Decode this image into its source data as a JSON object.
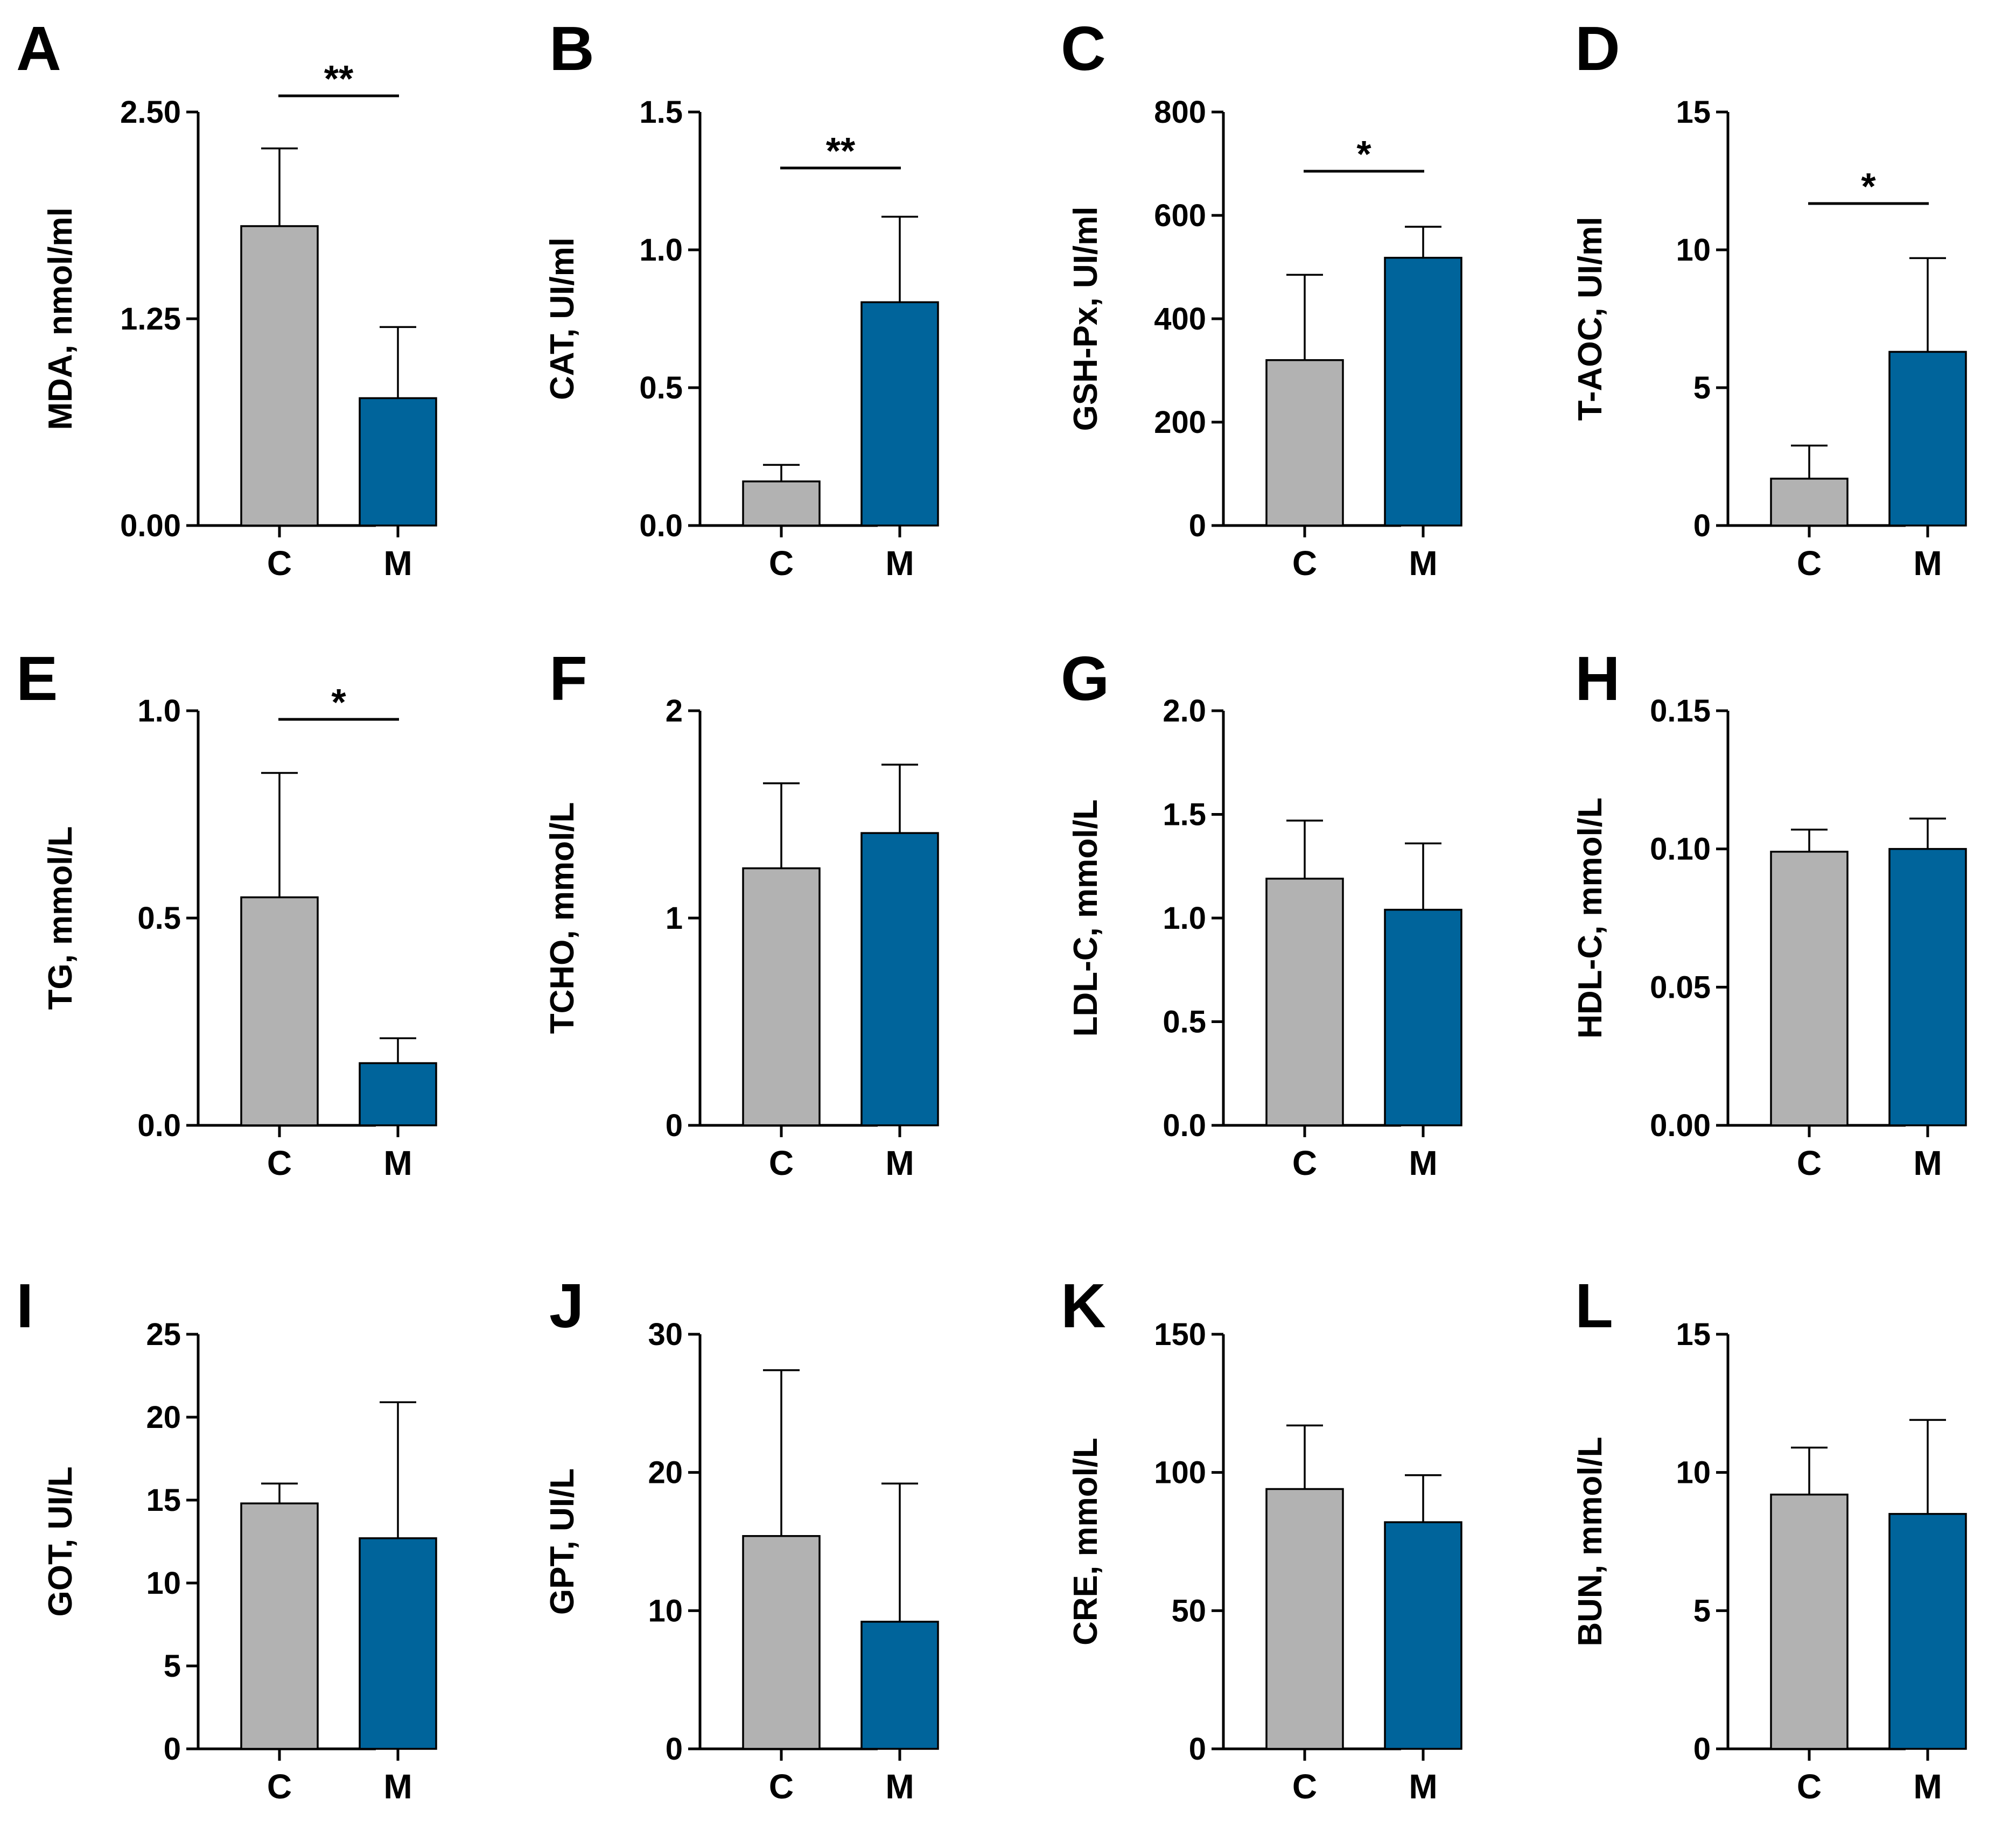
{
  "colors": {
    "C": "#b2b2b2",
    "M": "#00649b",
    "axis": "#000000",
    "background": "#ffffff"
  },
  "chart_data": [
    {
      "type": "bar",
      "panel": "A",
      "ylabel": "MDA, nmol/ml",
      "categories": [
        "C",
        "M"
      ],
      "values": [
        1.81,
        0.77
      ],
      "errors": [
        0.47,
        0.43
      ],
      "ylim": [
        0,
        2.5
      ],
      "yticks": [
        "0.00",
        "1.25",
        "2.50"
      ],
      "significance": "**"
    },
    {
      "type": "bar",
      "panel": "B",
      "ylabel": "CAT, UI/ml",
      "categories": [
        "C",
        "M"
      ],
      "values": [
        0.16,
        0.81
      ],
      "errors": [
        0.06,
        0.31
      ],
      "ylim": [
        0,
        1.5
      ],
      "yticks": [
        "0.0",
        "0.5",
        "1.0",
        "1.5"
      ],
      "significance": "**"
    },
    {
      "type": "bar",
      "panel": "C",
      "ylabel": "GSH-Px, UI/ml",
      "categories": [
        "C",
        "M"
      ],
      "values": [
        320,
        518
      ],
      "errors": [
        165,
        60
      ],
      "ylim": [
        0,
        800
      ],
      "yticks": [
        "0",
        "200",
        "400",
        "600",
        "800"
      ],
      "significance": "*"
    },
    {
      "type": "bar",
      "panel": "D",
      "ylabel": "T-AOC, UI/ml",
      "categories": [
        "C",
        "M"
      ],
      "values": [
        1.7,
        6.3
      ],
      "errors": [
        1.2,
        3.4
      ],
      "ylim": [
        0,
        15
      ],
      "yticks": [
        "0",
        "5",
        "10",
        "15"
      ],
      "significance": "*"
    },
    {
      "type": "bar",
      "panel": "E",
      "ylabel": "TG, mmol/L",
      "categories": [
        "C",
        "M"
      ],
      "values": [
        0.55,
        0.15
      ],
      "errors": [
        0.3,
        0.06
      ],
      "ylim": [
        0,
        1.0
      ],
      "yticks": [
        "0.0",
        "0.5",
        "1.0"
      ],
      "significance": "*"
    },
    {
      "type": "bar",
      "panel": "F",
      "ylabel": "TCHO, mmol/L",
      "categories": [
        "C",
        "M"
      ],
      "values": [
        1.24,
        1.41
      ],
      "errors": [
        0.41,
        0.33
      ],
      "ylim": [
        0,
        2
      ],
      "yticks": [
        "0",
        "1",
        "2"
      ],
      "significance": ""
    },
    {
      "type": "bar",
      "panel": "G",
      "ylabel": "LDL-C, mmol/L",
      "categories": [
        "C",
        "M"
      ],
      "values": [
        1.19,
        1.04
      ],
      "errors": [
        0.28,
        0.32
      ],
      "ylim": [
        0,
        2.0
      ],
      "yticks": [
        "0.0",
        "0.5",
        "1.0",
        "1.5",
        "2.0"
      ],
      "significance": ""
    },
    {
      "type": "bar",
      "panel": "H",
      "ylabel": "HDL-C, mmol/L",
      "categories": [
        "C",
        "M"
      ],
      "values": [
        0.099,
        0.1
      ],
      "errors": [
        0.008,
        0.011
      ],
      "ylim": [
        0,
        0.15
      ],
      "yticks": [
        "0.00",
        "0.05",
        "0.10",
        "0.15"
      ],
      "significance": ""
    },
    {
      "type": "bar",
      "panel": "I",
      "ylabel": "GOT, UI/L",
      "categories": [
        "C",
        "M"
      ],
      "values": [
        14.8,
        12.7
      ],
      "errors": [
        1.2,
        8.2
      ],
      "ylim": [
        0,
        25
      ],
      "yticks": [
        "0",
        "5",
        "10",
        "15",
        "20",
        "25"
      ],
      "significance": ""
    },
    {
      "type": "bar",
      "panel": "J",
      "ylabel": "GPT, UI/L",
      "categories": [
        "C",
        "M"
      ],
      "values": [
        15.4,
        9.2
      ],
      "errors": [
        12.0,
        10.0
      ],
      "ylim": [
        0,
        30
      ],
      "yticks": [
        "0",
        "10",
        "20",
        "30"
      ],
      "significance": ""
    },
    {
      "type": "bar",
      "panel": "K",
      "ylabel": "CRE, mmol/L",
      "categories": [
        "C",
        "M"
      ],
      "values": [
        94,
        82
      ],
      "errors": [
        23,
        17
      ],
      "ylim": [
        0,
        150
      ],
      "yticks": [
        "0",
        "50",
        "100",
        "150"
      ],
      "significance": ""
    },
    {
      "type": "bar",
      "panel": "L",
      "ylabel": "BUN, mmol/L",
      "categories": [
        "C",
        "M"
      ],
      "values": [
        9.2,
        8.5
      ],
      "errors": [
        1.7,
        3.4
      ],
      "ylim": [
        0,
        15
      ],
      "yticks": [
        "0",
        "5",
        "10",
        "15"
      ],
      "significance": ""
    }
  ]
}
